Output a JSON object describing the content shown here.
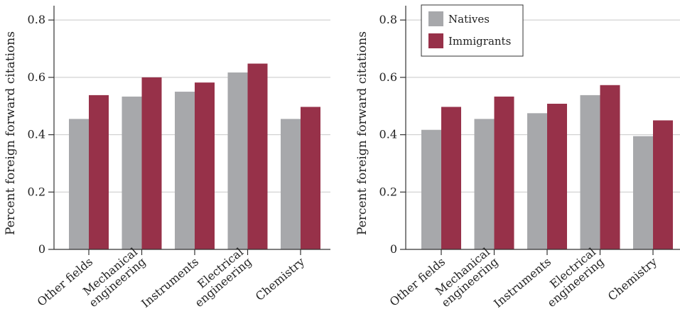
{
  "colors": {
    "natives": "#a7a8ab",
    "immigrants": "#973149",
    "gridline": "#c8c8c8",
    "axis": "#333333"
  },
  "legend": {
    "items": [
      "Natives",
      "Immigrants"
    ]
  },
  "chart_data": [
    {
      "type": "bar",
      "ylabel": "Percent foreign forward citations",
      "ylim": [
        0,
        0.85
      ],
      "yticks": [
        "0",
        "0.2",
        "0.4",
        "0.6",
        "0.8"
      ],
      "grid": true,
      "categories": [
        [
          "Other fields"
        ],
        [
          "Mechanical",
          "engineering"
        ],
        [
          "Instruments"
        ],
        [
          "Electrical",
          "engineering"
        ],
        [
          "Chemistry"
        ]
      ],
      "series": [
        {
          "name": "Natives",
          "values": [
            0.455,
            0.533,
            0.55,
            0.617,
            0.455
          ]
        },
        {
          "name": "Immigrants",
          "values": [
            0.538,
            0.6,
            0.582,
            0.648,
            0.497
          ]
        }
      ]
    },
    {
      "type": "bar",
      "ylabel": "Percent foreign forward citations",
      "ylim": [
        0,
        0.85
      ],
      "yticks": [
        "0",
        "0.2",
        "0.4",
        "0.6",
        "0.8"
      ],
      "grid": true,
      "legend_position": "top-left",
      "categories": [
        [
          "Other fields"
        ],
        [
          "Mechanical",
          "engineering"
        ],
        [
          "Instruments"
        ],
        [
          "Electrical",
          "engineering"
        ],
        [
          "Chemistry"
        ]
      ],
      "series": [
        {
          "name": "Natives",
          "values": [
            0.417,
            0.455,
            0.475,
            0.538,
            0.395
          ]
        },
        {
          "name": "Immigrants",
          "values": [
            0.497,
            0.533,
            0.508,
            0.573,
            0.45
          ]
        }
      ]
    }
  ]
}
